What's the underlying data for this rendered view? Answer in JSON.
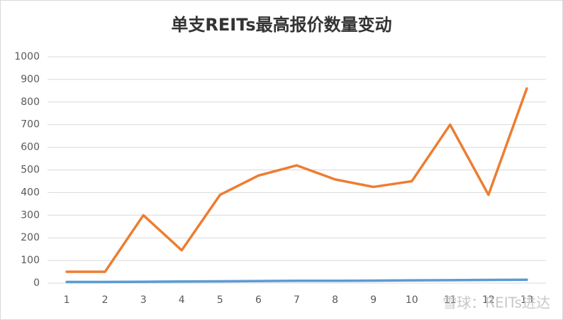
{
  "chart_data": {
    "type": "line",
    "title": "单支REITs最高报价数量变动",
    "categories": [
      "1",
      "2",
      "3",
      "4",
      "5",
      "6",
      "7",
      "8",
      "9",
      "10",
      "11",
      "12",
      "13"
    ],
    "series": [
      {
        "color": "#ed7d31",
        "values": [
          50,
          50,
          300,
          145,
          390,
          475,
          520,
          458,
          425,
          450,
          700,
          390,
          860
        ]
      },
      {
        "color": "#5b9bd5",
        "values": [
          5,
          5,
          6,
          7,
          8,
          9,
          10,
          10,
          11,
          12,
          13,
          14,
          15
        ]
      }
    ],
    "ylim": [
      0,
      1000
    ],
    "yticks": [
      0,
      100,
      200,
      300,
      400,
      500,
      600,
      700,
      800,
      900,
      1000
    ],
    "grid": true,
    "watermark": "雪球：REITs进达"
  }
}
